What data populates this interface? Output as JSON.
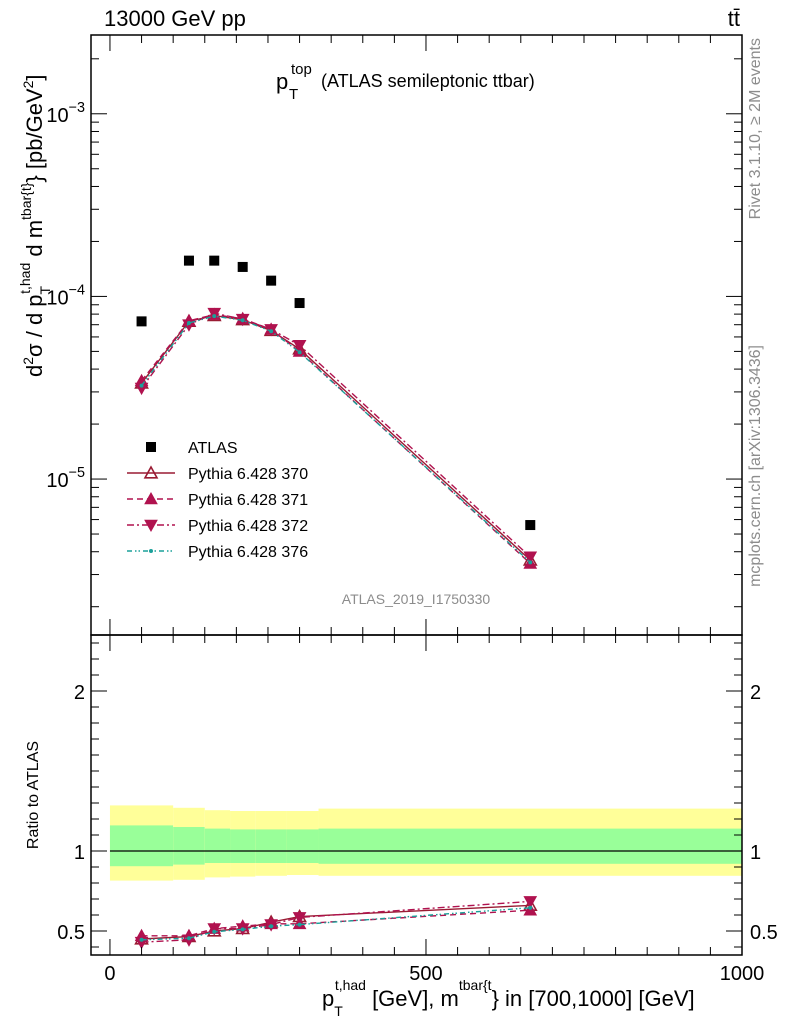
{
  "header": {
    "energy": "13000 GeV pp",
    "process": "tt̄"
  },
  "side_labels": {
    "rivet": "Rivet 3.1.10, ≥ 2M events",
    "mcplots": "mcplots.cern.ch [arXiv:1306.3436]"
  },
  "watermark": "ATLAS_2019_I1750330",
  "colors": {
    "data": "#000000",
    "p370": "#9a1b33",
    "p371": "#b0124f",
    "p372": "#b0124f",
    "p376": "#1aa09a",
    "band_outer": "#ffff99",
    "band_inner": "#99ff99"
  },
  "chart_data": [
    {
      "type": "scatter",
      "panel": "main",
      "title": "p_T^top (ATLAS semileptonic ttbar)",
      "title_parts": {
        "main": "p",
        "sub": "T",
        "sup": "top",
        "rest": "(ATLAS semileptonic ttbar)"
      },
      "ylabel": "d²σ / d p_T^{t,had} d m^{tbar{t}} [pb/GeV²]",
      "yscale": "log",
      "xlim": [
        -30,
        1000
      ],
      "ylim": [
        1.4e-06,
        0.0027
      ],
      "y_tick_labels": [
        "10^-5",
        "10^-4",
        "10^-3"
      ],
      "legend_position": "center-left",
      "series": [
        {
          "name": "ATLAS",
          "key": "atlas",
          "marker": "square",
          "x": [
            50,
            125,
            165,
            210,
            255,
            300,
            665
          ],
          "y": [
            7.3e-05,
            0.000157,
            0.000157,
            0.000145,
            0.000122,
            9.2e-05,
            5.6e-06
          ]
        },
        {
          "name": "Pythia 6.428 370",
          "key": "p370",
          "marker": "triangle-open",
          "line": "solid",
          "x": [
            50,
            125,
            165,
            210,
            255,
            300,
            665
          ],
          "y": [
            3.35e-05,
            7.3e-05,
            7.85e-05,
            7.45e-05,
            6.5e-05,
            5.15e-05,
            3.6e-06
          ]
        },
        {
          "name": "Pythia 6.428 371",
          "key": "p371",
          "marker": "triangle-filled",
          "line": "dashed",
          "x": [
            50,
            125,
            165,
            210,
            255,
            300,
            665
          ],
          "y": [
            3.45e-05,
            7.35e-05,
            7.95e-05,
            7.55e-05,
            6.6e-05,
            5e-05,
            3.45e-06
          ]
        },
        {
          "name": "Pythia 6.428 372",
          "key": "p372",
          "marker": "triangle-down-filled",
          "line": "dashdot",
          "x": [
            50,
            125,
            165,
            210,
            255,
            300,
            665
          ],
          "y": [
            3.15e-05,
            7e-05,
            8.1e-05,
            7.5e-05,
            6.6e-05,
            5.4e-05,
            3.75e-06
          ]
        },
        {
          "name": "Pythia 6.428 376",
          "key": "p376",
          "marker": "dot",
          "line": "dashdotdot",
          "x": [
            50,
            125,
            165,
            210,
            255,
            300,
            665
          ],
          "y": [
            3.25e-05,
            7.15e-05,
            7.8e-05,
            7.4e-05,
            6.45e-05,
            4.95e-05,
            3.5e-06
          ]
        }
      ]
    },
    {
      "type": "line",
      "panel": "ratio",
      "ylabel": "Ratio to ATLAS",
      "xlabel": "p_T^{t,had} [GeV], m^{tbar{t}} in [700,1000] [GeV]",
      "xlim": [
        -30,
        1000
      ],
      "ylim": [
        0.35,
        2.35
      ],
      "x_ticks": [
        0,
        500,
        1000
      ],
      "y_ticks": [
        0.5,
        1,
        2
      ],
      "bands": {
        "edges": [
          0,
          100,
          150,
          190,
          230,
          280,
          330,
          1000
        ],
        "outer_lo": [
          0.815,
          0.82,
          0.835,
          0.84,
          0.845,
          0.85,
          0.845
        ],
        "outer_hi": [
          1.285,
          1.27,
          1.255,
          1.25,
          1.25,
          1.25,
          1.265
        ],
        "inner_lo": [
          0.905,
          0.915,
          0.925,
          0.925,
          0.925,
          0.925,
          0.92
        ],
        "inner_hi": [
          1.16,
          1.15,
          1.14,
          1.135,
          1.135,
          1.135,
          1.14
        ]
      },
      "series": [
        {
          "name": "Pythia 6.428 370",
          "key": "p370",
          "marker": "triangle-open",
          "line": "solid",
          "x": [
            50,
            125,
            165,
            210,
            255,
            300,
            665
          ],
          "y": [
            0.45,
            0.465,
            0.5,
            0.515,
            0.555,
            0.59,
            0.66
          ]
        },
        {
          "name": "Pythia 6.428 371",
          "key": "p371",
          "marker": "triangle-filled",
          "line": "dashed",
          "x": [
            50,
            125,
            165,
            210,
            255,
            300,
            665
          ],
          "y": [
            0.47,
            0.47,
            0.515,
            0.53,
            0.545,
            0.545,
            0.63
          ]
        },
        {
          "name": "Pythia 6.428 372",
          "key": "p372",
          "marker": "triangle-down-filled",
          "line": "dashdot",
          "x": [
            50,
            125,
            165,
            210,
            255,
            300,
            665
          ],
          "y": [
            0.43,
            0.445,
            0.515,
            0.515,
            0.54,
            0.585,
            0.685
          ]
        },
        {
          "name": "Pythia 6.428 376",
          "key": "p376",
          "marker": "dot",
          "line": "dashdotdot",
          "x": [
            50,
            125,
            165,
            210,
            255,
            300,
            665
          ],
          "y": [
            0.445,
            0.455,
            0.495,
            0.51,
            0.53,
            0.54,
            0.645
          ]
        }
      ]
    }
  ]
}
